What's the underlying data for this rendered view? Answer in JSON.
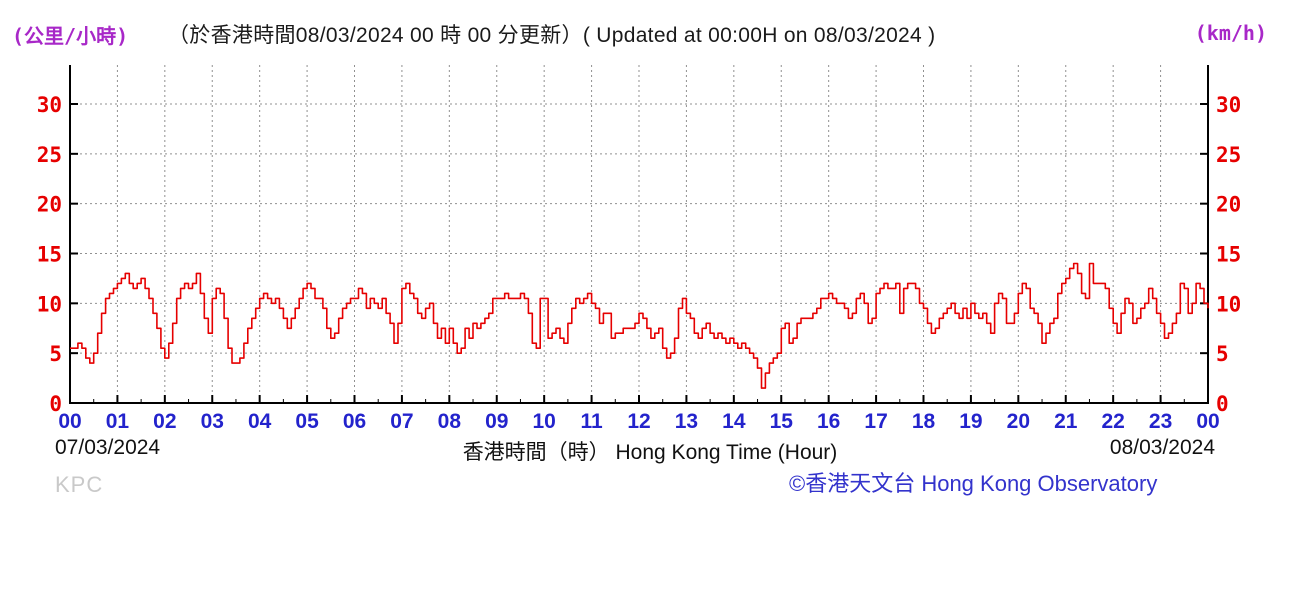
{
  "colors": {
    "line_red": "#e60000",
    "y_label_red": "#e60000",
    "x_label_blue": "#2323cc",
    "unit_magenta": "#a828c8",
    "copyright_blue": "#3333cc",
    "station_gray": "#c9c9c9",
    "grid_gray": "#909090",
    "axis_black": "#000000",
    "background": "#ffffff"
  },
  "chart_data": {
    "type": "line",
    "title": "（於香港時間08/03/2024 00 時 00 分更新）( Updated at 00:00H on 08/03/2024 )",
    "ylabel_left": "(公里/小時)",
    "ylabel_right": "(km/h)",
    "xlabel": "香港時間（時） Hong Kong Time (Hour)",
    "date_left": "07/03/2024",
    "date_right": "08/03/2024",
    "station": "KPC",
    "copyright": "©香港天文台 Hong Kong Observatory",
    "grid": true,
    "legend": "none",
    "x_tick_labels": [
      "00",
      "01",
      "02",
      "03",
      "04",
      "05",
      "06",
      "07",
      "08",
      "09",
      "10",
      "11",
      "12",
      "13",
      "14",
      "15",
      "16",
      "17",
      "18",
      "19",
      "20",
      "21",
      "22",
      "23",
      "00"
    ],
    "y_ticks": [
      0,
      5,
      10,
      15,
      20,
      25,
      30
    ],
    "ylim": [
      0,
      34
    ],
    "x_hours": 24,
    "interval_minutes": 5,
    "series": [
      {
        "name": "wind-speed-km-h",
        "color": "#e60000",
        "values": [
          5.5,
          5.5,
          6,
          5.5,
          4.5,
          4,
          5,
          7,
          9,
          10.5,
          11,
          11.5,
          12,
          12.5,
          13,
          12,
          11.5,
          12,
          12.5,
          11.5,
          10.5,
          9,
          7.5,
          5.5,
          4.5,
          6,
          8,
          10.5,
          11.5,
          12,
          11.5,
          12,
          13,
          11,
          8.5,
          7,
          10.5,
          11.5,
          11,
          8.5,
          5.5,
          4,
          4,
          4.5,
          6,
          7.5,
          8.5,
          9.5,
          10.5,
          11,
          10.5,
          10,
          10.5,
          9.5,
          8.5,
          7.5,
          8.5,
          9.5,
          10.5,
          11.5,
          12,
          11.5,
          10.5,
          10.5,
          9.5,
          7.5,
          6.5,
          7,
          8.5,
          9.5,
          10,
          10.5,
          10.5,
          11.5,
          11,
          9.5,
          10.5,
          10,
          9.5,
          10.5,
          9,
          8,
          6,
          8,
          11.5,
          12,
          11,
          10.5,
          9,
          8.5,
          9.5,
          10,
          8,
          6.5,
          7.5,
          6,
          7.5,
          6,
          5,
          5.5,
          7.5,
          6.5,
          8,
          7.5,
          8,
          8.5,
          9,
          10.5,
          10.5,
          10.5,
          11,
          10.5,
          10.5,
          10.5,
          11,
          10.5,
          9,
          6,
          5.5,
          10.5,
          10.5,
          6.5,
          7,
          7.5,
          6.5,
          6,
          8,
          9.5,
          10.5,
          10,
          10.5,
          11,
          10,
          9.5,
          8,
          9,
          9,
          6.5,
          7,
          7,
          7.5,
          7.5,
          7.5,
          8,
          9,
          8.5,
          7.5,
          6.5,
          7,
          7.5,
          5.5,
          4.5,
          5,
          6.5,
          9.5,
          10.5,
          9,
          8.5,
          7,
          6.5,
          7.5,
          8,
          7,
          6.5,
          7,
          6.5,
          6,
          6.5,
          6,
          5.5,
          6,
          5.5,
          5,
          4.5,
          3.5,
          1.5,
          3,
          4,
          4.5,
          5,
          7.5,
          8,
          6,
          6.5,
          8,
          8.5,
          8.5,
          8.5,
          9,
          9.5,
          10.5,
          10.5,
          11,
          10.5,
          10,
          10,
          9.5,
          8.5,
          9,
          10.5,
          11,
          10,
          8,
          8.5,
          11,
          11.5,
          12,
          11.5,
          11.5,
          12,
          9,
          11.5,
          12,
          12,
          11.5,
          10,
          9.5,
          8,
          7,
          7.5,
          8.5,
          9,
          9.5,
          10,
          9,
          8.5,
          9.5,
          8.5,
          10,
          9,
          8.5,
          9,
          8,
          7,
          10,
          11,
          10.5,
          8,
          8,
          9,
          11,
          12,
          11.5,
          9.5,
          9,
          8,
          6,
          7,
          8,
          8.5,
          11,
          12,
          12.5,
          13.5,
          14,
          13,
          11,
          10.5,
          14,
          12,
          12,
          12,
          11.5,
          9.5,
          8,
          7,
          9,
          10.5,
          10,
          8,
          8.5,
          9.5,
          10,
          11.5,
          10.5,
          9,
          8,
          6.5,
          7,
          8,
          9,
          12,
          11.5,
          9,
          10,
          12,
          11.5,
          10,
          9.5
        ]
      }
    ]
  }
}
